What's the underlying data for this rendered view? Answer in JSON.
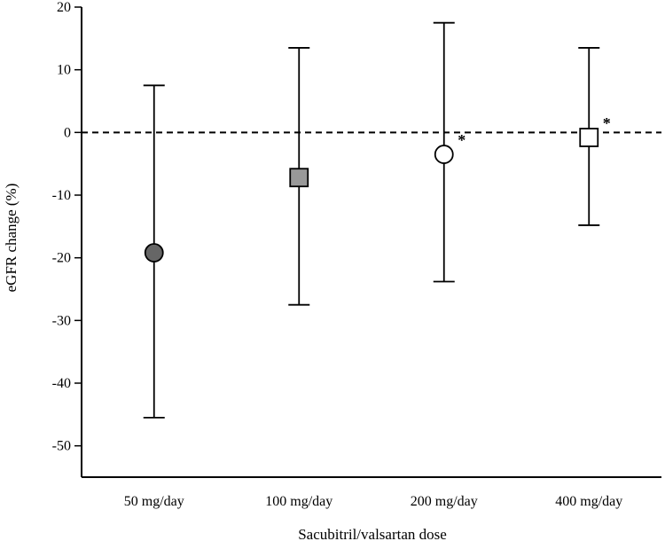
{
  "chart_data": {
    "type": "scatter",
    "title": "",
    "xlabel": "Sacubitril/valsartan dose",
    "ylabel": "eGFR change (%)",
    "ylim": [
      -55,
      20
    ],
    "yticks": [
      20,
      10,
      0,
      -10,
      -20,
      -30,
      -40,
      -50
    ],
    "categories": [
      "50 mg/day",
      "100 mg/day",
      "200 mg/day",
      "400 mg/day"
    ],
    "reference_line": {
      "y": 0,
      "style": "dashed"
    },
    "grid": false,
    "legend": "none",
    "points": [
      {
        "category": "50 mg/day",
        "mean": -19.2,
        "upper": 7.5,
        "lower": -45.5,
        "marker": "circle",
        "fill": "#666666",
        "annotation": ""
      },
      {
        "category": "100 mg/day",
        "mean": -7.2,
        "upper": 13.5,
        "lower": -27.5,
        "marker": "square",
        "fill": "#999999",
        "annotation": ""
      },
      {
        "category": "200 mg/day",
        "mean": -3.5,
        "upper": 17.5,
        "lower": -23.8,
        "marker": "circle",
        "fill": "#ffffff",
        "annotation": "*"
      },
      {
        "category": "400 mg/day",
        "mean": -0.8,
        "upper": 13.5,
        "lower": -14.8,
        "marker": "square",
        "fill": "#ffffff",
        "annotation": "*"
      }
    ]
  }
}
